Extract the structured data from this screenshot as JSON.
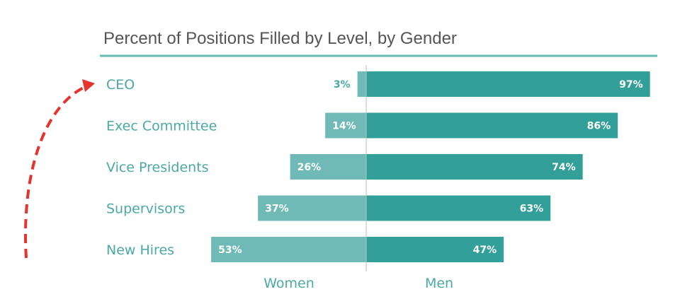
{
  "chart_data": {
    "type": "bar",
    "orientation": "horizontal-diverging",
    "title": "Percent of Positions Filled by Level, by Gender",
    "categories": [
      "CEO",
      "Exec Committee",
      "Vice Presidents",
      "Supervisors",
      "New Hires"
    ],
    "series": [
      {
        "name": "Women",
        "values": [
          3,
          14,
          26,
          37,
          53
        ],
        "labels": [
          "3%",
          "14%",
          "26%",
          "37%",
          "53%"
        ]
      },
      {
        "name": "Men",
        "values": [
          97,
          86,
          74,
          63,
          47
        ],
        "labels": [
          "97%",
          "86%",
          "74%",
          "63%",
          "47%"
        ]
      }
    ],
    "xlim": [
      0,
      100
    ],
    "grid": false,
    "legend": "bottom",
    "colors": {
      "women": "#6fb9b6",
      "men": "#339f99",
      "accent_line": "#66bcb6",
      "category_text": "#4aa9a5",
      "label_inside": "#ffffff",
      "label_outside": "#4aa9a5",
      "arrow": "#e8322c"
    }
  }
}
